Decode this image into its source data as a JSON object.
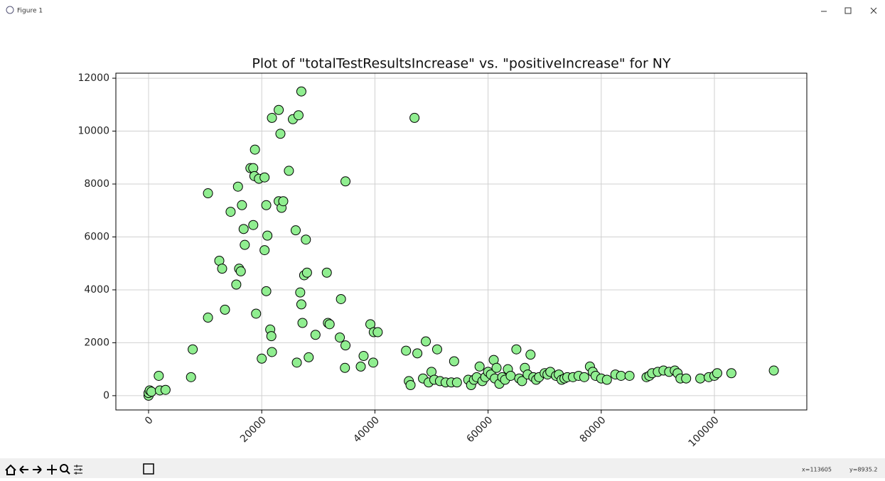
{
  "window": {
    "title": "Figure 1",
    "status_x": "x=113605",
    "status_y": "y=8935.2"
  },
  "chart_data": {
    "type": "scatter",
    "title": "Plot of \"totalTestResultsIncrease\" vs. \"positiveIncrease\" for NY",
    "x": [
      0,
      0,
      200,
      500,
      1800,
      2000,
      3000,
      7500,
      7800,
      10500,
      10500,
      12500,
      13000,
      13500,
      14500,
      15500,
      15800,
      16000,
      16300,
      16500,
      16800,
      17000,
      18000,
      18500,
      18500,
      18700,
      18800,
      19000,
      19500,
      20000,
      20500,
      20500,
      20800,
      20800,
      21000,
      21500,
      21700,
      21800,
      21800,
      23000,
      23000,
      23300,
      23500,
      23800,
      24800,
      25500,
      26000,
      26200,
      26500,
      26800,
      27000,
      27000,
      27200,
      27500,
      27800,
      28000,
      28300,
      29500,
      31500,
      31700,
      32000,
      33800,
      34000,
      34800,
      34800,
      34700,
      37500,
      38000,
      39200,
      39700,
      39800,
      40500,
      45500,
      46000,
      46300,
      47000,
      47500,
      48500,
      49000,
      49500,
      50000,
      50500,
      51000,
      51500,
      52500,
      53500,
      54000,
      54500,
      56500,
      57000,
      57500,
      58000,
      58500,
      59000,
      59500,
      60000,
      60500,
      61000,
      61200,
      61500,
      62000,
      62500,
      63000,
      63500,
      64000,
      65000,
      65500,
      66000,
      66500,
      67000,
      67500,
      68000,
      68500,
      69000,
      70000,
      70500,
      71000,
      72000,
      72500,
      73000,
      73500,
      74000,
      75000,
      76000,
      77000,
      78000,
      78500,
      79000,
      80000,
      81000,
      82500,
      83500,
      85000,
      88000,
      88500,
      89000,
      90000,
      91000,
      92000,
      93000,
      93500,
      94000,
      95000,
      97500,
      99000,
      100000,
      100500,
      103000,
      110500
    ],
    "values": [
      0,
      100,
      200,
      150,
      750,
      200,
      220,
      700,
      1750,
      2950,
      7650,
      5100,
      4800,
      3250,
      6950,
      4200,
      7900,
      4800,
      4700,
      7200,
      6300,
      5700,
      8600,
      8600,
      6450,
      8300,
      9300,
      3100,
      8200,
      1400,
      8250,
      5500,
      3950,
      7200,
      6050,
      2500,
      2250,
      1650,
      10500,
      7350,
      10800,
      9900,
      7100,
      7350,
      8500,
      10450,
      6250,
      1250,
      10600,
      3900,
      3450,
      11500,
      2750,
      4550,
      5900,
      4650,
      1450,
      2300,
      4650,
      2750,
      2700,
      2200,
      3650,
      8100,
      1900,
      1050,
      1100,
      1500,
      2700,
      1250,
      2400,
      2400,
      1700,
      550,
      400,
      10500,
      1600,
      650,
      2050,
      500,
      900,
      600,
      1750,
      550,
      500,
      500,
      1300,
      500,
      600,
      400,
      600,
      700,
      1100,
      550,
      700,
      900,
      800,
      1350,
      650,
      1050,
      450,
      700,
      600,
      1000,
      750,
      1750,
      650,
      550,
      1050,
      800,
      1550,
      700,
      600,
      700,
      850,
      800,
      900,
      750,
      800,
      600,
      650,
      700,
      700,
      750,
      700,
      1100,
      900,
      750,
      650,
      600,
      800,
      750,
      750,
      700,
      750,
      850,
      900,
      950,
      900,
      950,
      850,
      650,
      650,
      650,
      700,
      750,
      850,
      850,
      950
    ],
    "color": "#90ee90",
    "edgecolor": "#000000",
    "xlim": [
      -5780,
      116330
    ],
    "xticks": [
      0,
      20000,
      40000,
      60000,
      80000,
      100000
    ],
    "ylim": [
      -540,
      12190
    ],
    "yticks": [
      0,
      2000,
      4000,
      6000,
      8000,
      10000,
      12000
    ],
    "grid": true
  }
}
